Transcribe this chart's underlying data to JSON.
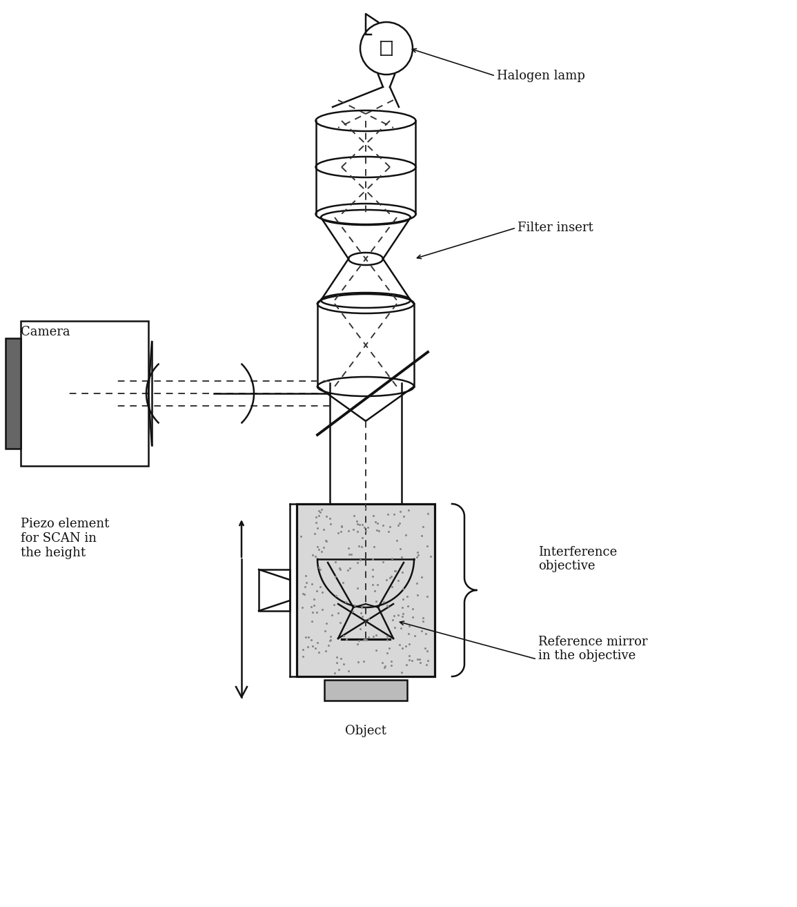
{
  "bg_color": "#ffffff",
  "line_color": "#111111",
  "dashed_color": "#333333",
  "labels": {
    "halogen_lamp": "Halogen lamp",
    "filter_insert": "Filter insert",
    "camera": "Camera",
    "interference_objective": "Interference\nobjective",
    "piezo_element": "Piezo element\nfor SCAN in\nthe height",
    "reference_mirror": "Reference mirror\nin the objective",
    "object": "Object"
  },
  "figsize": [
    11.55,
    13.14
  ],
  "dpi": 100
}
